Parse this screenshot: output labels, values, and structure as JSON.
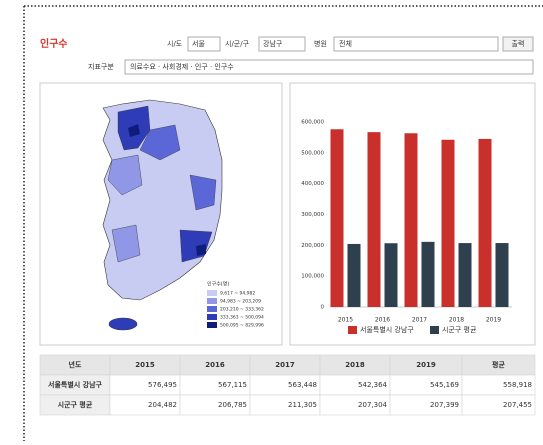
{
  "header": {
    "title": "인구수",
    "filters": {
      "sido_label": "시/도",
      "sido_value": "서울",
      "sigungu_label": "시/군/구",
      "sigungu_value": "강남구",
      "hospital_label": "병원",
      "hospital_value": "전체",
      "print_button": "출력"
    },
    "indicator_label": "지표구분",
    "indicator_value": "의료수요 · 사회경제 · 인구 · 인구수"
  },
  "map": {
    "legend_title": "인구수(명)",
    "legend": [
      {
        "label": "9,617 ~ 94,982",
        "color": "#c9ccf2"
      },
      {
        "label": "94,983 ~ 203,209",
        "color": "#8f97e6"
      },
      {
        "label": "203,210 ~ 333,362",
        "color": "#5b67d6"
      },
      {
        "label": "333,363 ~ 500,094",
        "color": "#2f3cb8"
      },
      {
        "label": "500,095 ~ 829,996",
        "color": "#101c7c"
      }
    ]
  },
  "chart_data": {
    "type": "bar",
    "categories": [
      "2015",
      "2016",
      "2017",
      "2018",
      "2019"
    ],
    "series": [
      {
        "name": "서울특별시 강남구",
        "color": "#c9302c",
        "values": [
          576495,
          567115,
          563448,
          542364,
          545169
        ]
      },
      {
        "name": "시군구 평균",
        "color": "#2e3f4e",
        "values": [
          204482,
          206785,
          211305,
          207304,
          207399
        ]
      }
    ],
    "ylim": [
      0,
      600000
    ],
    "yticks": [
      0,
      {
        "value": 100000,
        "label": "100,000"
      },
      {
        "value": 200000,
        "label": "200,000"
      },
      {
        "value": 300000,
        "label": "300,000"
      },
      {
        "value": 400000,
        "label": "400,000"
      },
      {
        "value": 500000,
        "label": "500,000"
      },
      {
        "value": 600000,
        "label": "600,000"
      }
    ],
    "grid": false
  },
  "table": {
    "header": [
      "년도",
      "2015",
      "2016",
      "2017",
      "2018",
      "2019",
      "평균"
    ],
    "rows": [
      [
        "서울특별시 강남구",
        "576,495",
        "567,115",
        "563,448",
        "542,364",
        "545,169",
        "558,918"
      ],
      [
        "시군구 평균",
        "204,482",
        "206,785",
        "211,305",
        "207,304",
        "207,399",
        "207,455"
      ]
    ]
  }
}
